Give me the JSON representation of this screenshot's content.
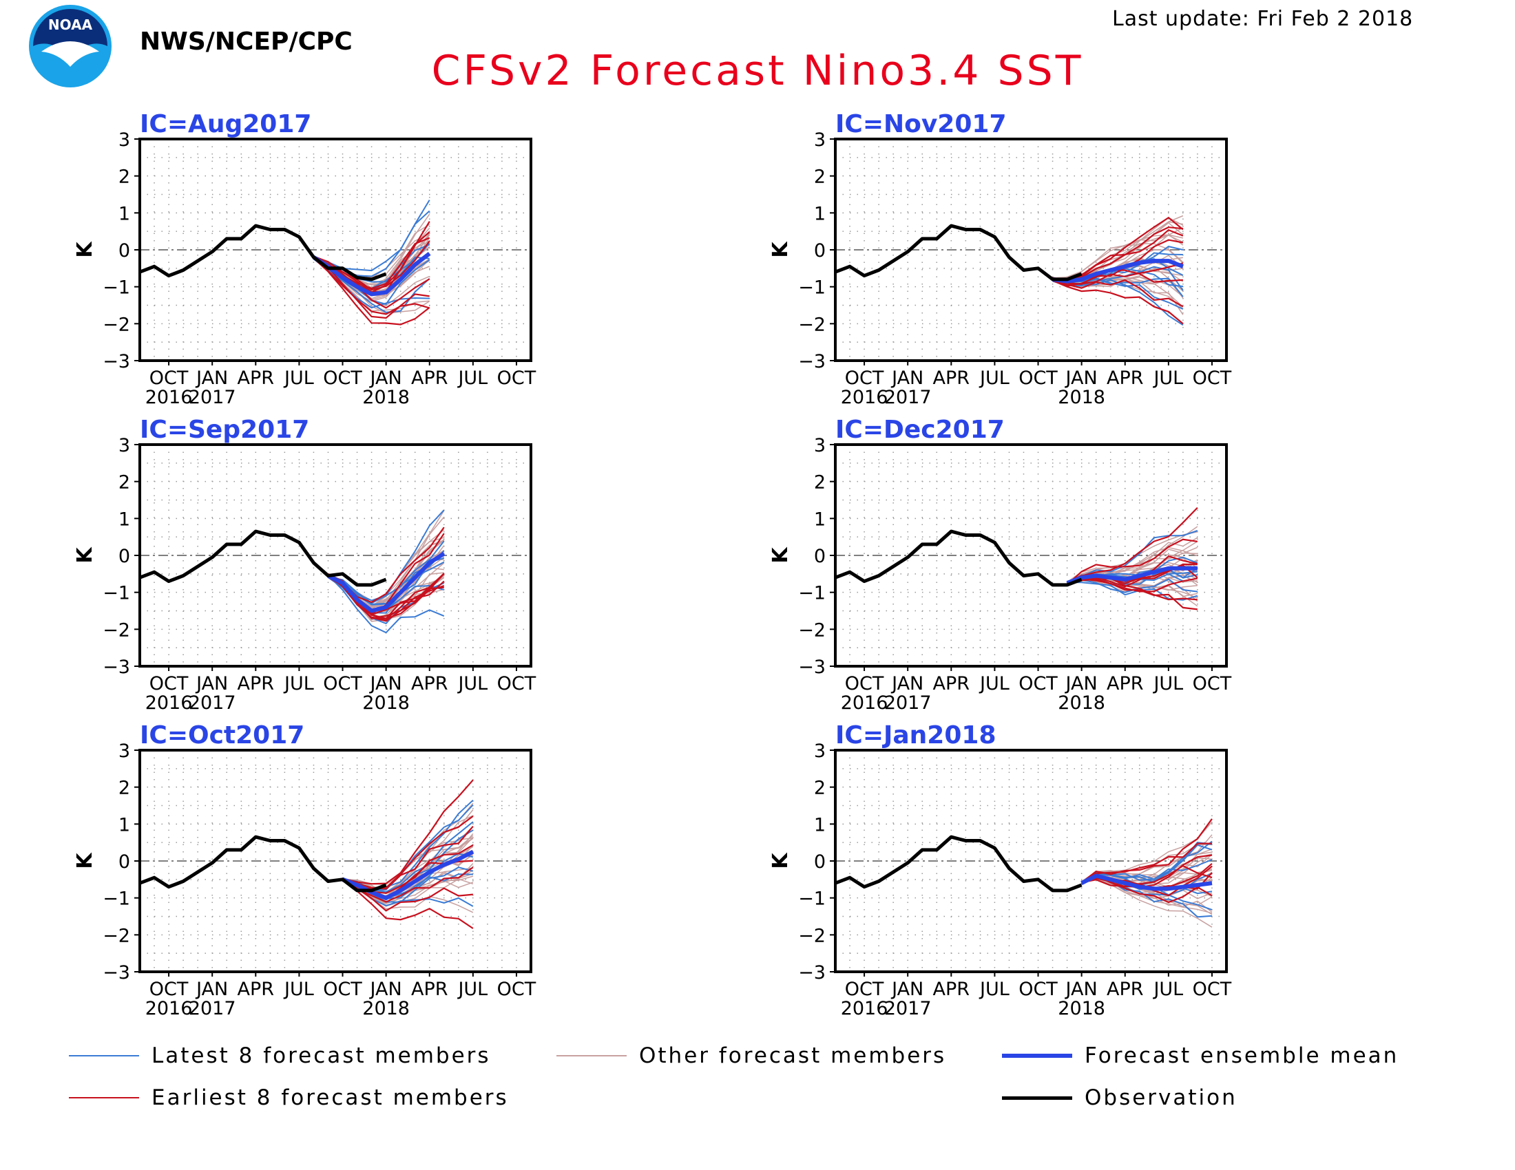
{
  "header": {
    "agency": "NWS/NCEP/CPC",
    "updated": "Last update: Fri Feb 2 2018",
    "title": "CFSv2 Forecast Nino3.4 SST",
    "logo_text": "NOAA"
  },
  "colors": {
    "title": "#e8001c",
    "ic_label": "#2a45e6",
    "latest": "#3a7bd5",
    "earliest": "#c8101e",
    "other": "#c8a0a0",
    "mean": "#2a45e6",
    "observation": "#000000"
  },
  "legend": [
    {
      "key": "latest",
      "label": "Latest 8 forecast members"
    },
    {
      "key": "other",
      "label": "Other forecast members"
    },
    {
      "key": "mean",
      "label": "Forecast ensemble mean"
    },
    {
      "key": "earliest",
      "label": "Earliest 8 forecast members"
    },
    {
      "key": "observation",
      "label": "Observation"
    }
  ],
  "chart_data": [
    {
      "type": "line",
      "title": "IC=Aug2017",
      "ylabel": "K",
      "ylim": [
        -3,
        3
      ],
      "yticks": [
        3,
        2,
        1,
        0,
        -1,
        -2,
        -3
      ],
      "x_ticks": [
        {
          "m": 2,
          "label": "OCT",
          "year": "2016"
        },
        {
          "m": 5,
          "label": "JAN",
          "year": "2017"
        },
        {
          "m": 8,
          "label": "APR",
          "year": ""
        },
        {
          "m": 11,
          "label": "JUL",
          "year": ""
        },
        {
          "m": 14,
          "label": "OCT",
          "year": ""
        },
        {
          "m": 17,
          "label": "JAN",
          "year": "2018"
        },
        {
          "m": 20,
          "label": "APR",
          "year": ""
        },
        {
          "m": 23,
          "label": "JUL",
          "year": ""
        },
        {
          "m": 26,
          "label": "OCT",
          "year": ""
        }
      ],
      "observation": {
        "start_month": "Aug 2016",
        "values": [
          -0.6,
          -0.45,
          -0.7,
          -0.55,
          -0.3,
          -0.05,
          0.3,
          0.3,
          0.65,
          0.55,
          0.55,
          0.35,
          -0.2,
          -0.5,
          -0.5,
          -0.75,
          -0.8,
          -0.65
        ]
      },
      "ensemble_mean": {
        "start_month": "Aug 2017",
        "values": [
          -0.2,
          -0.45,
          -0.75,
          -1.0,
          -1.2,
          -1.15,
          -0.8,
          -0.4,
          -0.1
        ]
      }
    },
    {
      "type": "line",
      "title": "IC=Nov2017",
      "ylabel": "K",
      "ylim": [
        -3,
        3
      ],
      "yticks": [
        3,
        2,
        1,
        0,
        -1,
        -2,
        -3
      ],
      "x_ticks": [
        {
          "m": 2,
          "label": "OCT",
          "year": "2016"
        },
        {
          "m": 5,
          "label": "JAN",
          "year": "2017"
        },
        {
          "m": 8,
          "label": "APR",
          "year": ""
        },
        {
          "m": 11,
          "label": "JUL",
          "year": ""
        },
        {
          "m": 14,
          "label": "OCT",
          "year": ""
        },
        {
          "m": 17,
          "label": "JAN",
          "year": "2018"
        },
        {
          "m": 20,
          "label": "APR",
          "year": ""
        },
        {
          "m": 23,
          "label": "JUL",
          "year": ""
        },
        {
          "m": 26,
          "label": "OCT",
          "year": ""
        }
      ],
      "observation": {
        "start_month": "Aug 2016",
        "values": [
          -0.6,
          -0.45,
          -0.7,
          -0.55,
          -0.3,
          -0.05,
          0.3,
          0.3,
          0.65,
          0.55,
          0.55,
          0.35,
          -0.2,
          -0.55,
          -0.5,
          -0.8,
          -0.8,
          -0.65
        ]
      },
      "ensemble_mean": {
        "start_month": "Nov 2017",
        "values": [
          -0.8,
          -0.85,
          -0.8,
          -0.65,
          -0.55,
          -0.45,
          -0.35,
          -0.3,
          -0.3,
          -0.45
        ]
      }
    },
    {
      "type": "line",
      "title": "IC=Sep2017",
      "ylabel": "K",
      "ylim": [
        -3,
        3
      ],
      "yticks": [
        3,
        2,
        1,
        0,
        -1,
        -2,
        -3
      ],
      "x_ticks": [
        {
          "m": 2,
          "label": "OCT",
          "year": "2016"
        },
        {
          "m": 5,
          "label": "JAN",
          "year": "2017"
        },
        {
          "m": 8,
          "label": "APR",
          "year": ""
        },
        {
          "m": 11,
          "label": "JUL",
          "year": ""
        },
        {
          "m": 14,
          "label": "OCT",
          "year": ""
        },
        {
          "m": 17,
          "label": "JAN",
          "year": "2018"
        },
        {
          "m": 20,
          "label": "APR",
          "year": ""
        },
        {
          "m": 23,
          "label": "JUL",
          "year": ""
        },
        {
          "m": 26,
          "label": "OCT",
          "year": ""
        }
      ],
      "observation": {
        "start_month": "Aug 2016",
        "values": [
          -0.6,
          -0.45,
          -0.7,
          -0.55,
          -0.3,
          -0.05,
          0.3,
          0.3,
          0.65,
          0.55,
          0.55,
          0.35,
          -0.2,
          -0.55,
          -0.5,
          -0.8,
          -0.8,
          -0.65
        ]
      },
      "ensemble_mean": {
        "start_month": "Sep 2017",
        "values": [
          -0.55,
          -0.75,
          -1.2,
          -1.5,
          -1.4,
          -1.0,
          -0.6,
          -0.2,
          0.05
        ]
      }
    },
    {
      "type": "line",
      "title": "IC=Dec2017",
      "ylabel": "K",
      "ylim": [
        -3,
        3
      ],
      "yticks": [
        3,
        2,
        1,
        0,
        -1,
        -2,
        -3
      ],
      "x_ticks": [
        {
          "m": 2,
          "label": "OCT",
          "year": "2016"
        },
        {
          "m": 5,
          "label": "JAN",
          "year": "2017"
        },
        {
          "m": 8,
          "label": "APR",
          "year": ""
        },
        {
          "m": 11,
          "label": "JUL",
          "year": ""
        },
        {
          "m": 14,
          "label": "OCT",
          "year": ""
        },
        {
          "m": 17,
          "label": "JAN",
          "year": "2018"
        },
        {
          "m": 20,
          "label": "APR",
          "year": ""
        },
        {
          "m": 23,
          "label": "JUL",
          "year": ""
        },
        {
          "m": 26,
          "label": "OCT",
          "year": ""
        }
      ],
      "observation": {
        "start_month": "Aug 2016",
        "values": [
          -0.6,
          -0.45,
          -0.7,
          -0.55,
          -0.3,
          -0.05,
          0.3,
          0.3,
          0.65,
          0.55,
          0.55,
          0.35,
          -0.2,
          -0.55,
          -0.5,
          -0.8,
          -0.8,
          -0.65
        ]
      },
      "ensemble_mean": {
        "start_month": "Dec 2017",
        "values": [
          -0.75,
          -0.6,
          -0.55,
          -0.6,
          -0.65,
          -0.55,
          -0.45,
          -0.35,
          -0.35,
          -0.35
        ]
      }
    },
    {
      "type": "line",
      "title": "IC=Oct2017",
      "ylabel": "K",
      "ylim": [
        -3,
        3
      ],
      "yticks": [
        3,
        2,
        1,
        0,
        -1,
        -2,
        -3
      ],
      "x_ticks": [
        {
          "m": 2,
          "label": "OCT",
          "year": "2016"
        },
        {
          "m": 5,
          "label": "JAN",
          "year": "2017"
        },
        {
          "m": 8,
          "label": "APR",
          "year": ""
        },
        {
          "m": 11,
          "label": "JUL",
          "year": ""
        },
        {
          "m": 14,
          "label": "OCT",
          "year": ""
        },
        {
          "m": 17,
          "label": "JAN",
          "year": "2018"
        },
        {
          "m": 20,
          "label": "APR",
          "year": ""
        },
        {
          "m": 23,
          "label": "JUL",
          "year": ""
        },
        {
          "m": 26,
          "label": "OCT",
          "year": ""
        }
      ],
      "observation": {
        "start_month": "Aug 2016",
        "values": [
          -0.6,
          -0.45,
          -0.7,
          -0.55,
          -0.3,
          -0.05,
          0.3,
          0.3,
          0.65,
          0.55,
          0.55,
          0.35,
          -0.2,
          -0.55,
          -0.5,
          -0.8,
          -0.8,
          -0.65
        ]
      },
      "ensemble_mean": {
        "start_month": "Oct 2017",
        "values": [
          -0.5,
          -0.65,
          -0.85,
          -1.0,
          -0.8,
          -0.55,
          -0.3,
          -0.1,
          0.05,
          0.25
        ]
      }
    },
    {
      "type": "line",
      "title": "IC=Jan2018",
      "ylabel": "K",
      "ylim": [
        -3,
        3
      ],
      "yticks": [
        3,
        2,
        1,
        0,
        -1,
        -2,
        -3
      ],
      "x_ticks": [
        {
          "m": 2,
          "label": "OCT",
          "year": "2016"
        },
        {
          "m": 5,
          "label": "JAN",
          "year": "2017"
        },
        {
          "m": 8,
          "label": "APR",
          "year": ""
        },
        {
          "m": 11,
          "label": "JUL",
          "year": ""
        },
        {
          "m": 14,
          "label": "OCT",
          "year": ""
        },
        {
          "m": 17,
          "label": "JAN",
          "year": "2018"
        },
        {
          "m": 20,
          "label": "APR",
          "year": ""
        },
        {
          "m": 23,
          "label": "JUL",
          "year": ""
        },
        {
          "m": 26,
          "label": "OCT",
          "year": ""
        }
      ],
      "observation": {
        "start_month": "Aug 2016",
        "values": [
          -0.6,
          -0.45,
          -0.7,
          -0.55,
          -0.3,
          -0.05,
          0.3,
          0.3,
          0.65,
          0.55,
          0.55,
          0.35,
          -0.2,
          -0.55,
          -0.5,
          -0.8,
          -0.8,
          -0.65
        ]
      },
      "ensemble_mean": {
        "start_month": "Jan 2018",
        "values": [
          -0.6,
          -0.4,
          -0.5,
          -0.6,
          -0.7,
          -0.75,
          -0.75,
          -0.7,
          -0.65,
          -0.6
        ]
      }
    }
  ]
}
